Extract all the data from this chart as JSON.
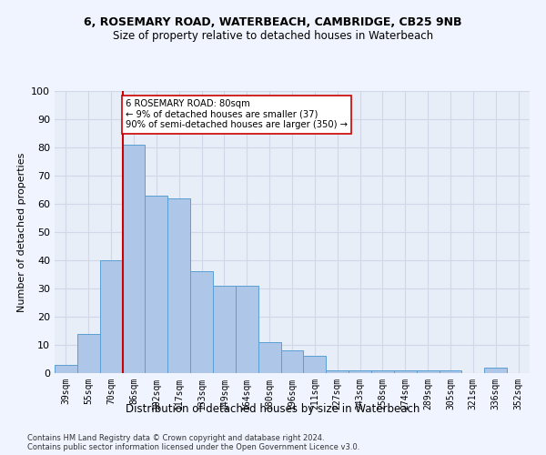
{
  "title1": "6, ROSEMARY ROAD, WATERBEACH, CAMBRIDGE, CB25 9NB",
  "title2": "Size of property relative to detached houses in Waterbeach",
  "xlabel": "Distribution of detached houses by size in Waterbeach",
  "ylabel": "Number of detached properties",
  "categories": [
    "39sqm",
    "55sqm",
    "70sqm",
    "86sqm",
    "102sqm",
    "117sqm",
    "133sqm",
    "149sqm",
    "164sqm",
    "180sqm",
    "196sqm",
    "211sqm",
    "227sqm",
    "243sqm",
    "258sqm",
    "274sqm",
    "289sqm",
    "305sqm",
    "321sqm",
    "336sqm",
    "352sqm"
  ],
  "values": [
    3,
    14,
    40,
    81,
    63,
    62,
    36,
    31,
    31,
    11,
    8,
    6,
    1,
    1,
    1,
    1,
    1,
    1,
    0,
    2,
    0
  ],
  "bar_color": "#aec6e8",
  "bar_edge_color": "#5a9fd4",
  "vline_index": 2.5,
  "vline_color": "#cc0000",
  "annotation_text": "6 ROSEMARY ROAD: 80sqm\n← 9% of detached houses are smaller (37)\n90% of semi-detached houses are larger (350) →",
  "annotation_box_color": "#ffffff",
  "annotation_box_edge": "#cc0000",
  "ylim": [
    0,
    100
  ],
  "yticks": [
    0,
    10,
    20,
    30,
    40,
    50,
    60,
    70,
    80,
    90,
    100
  ],
  "grid_color": "#d0d8e8",
  "bg_color": "#e8eef8",
  "fig_bg_color": "#f0f4ff",
  "footer1": "Contains HM Land Registry data © Crown copyright and database right 2024.",
  "footer2": "Contains public sector information licensed under the Open Government Licence v3.0."
}
